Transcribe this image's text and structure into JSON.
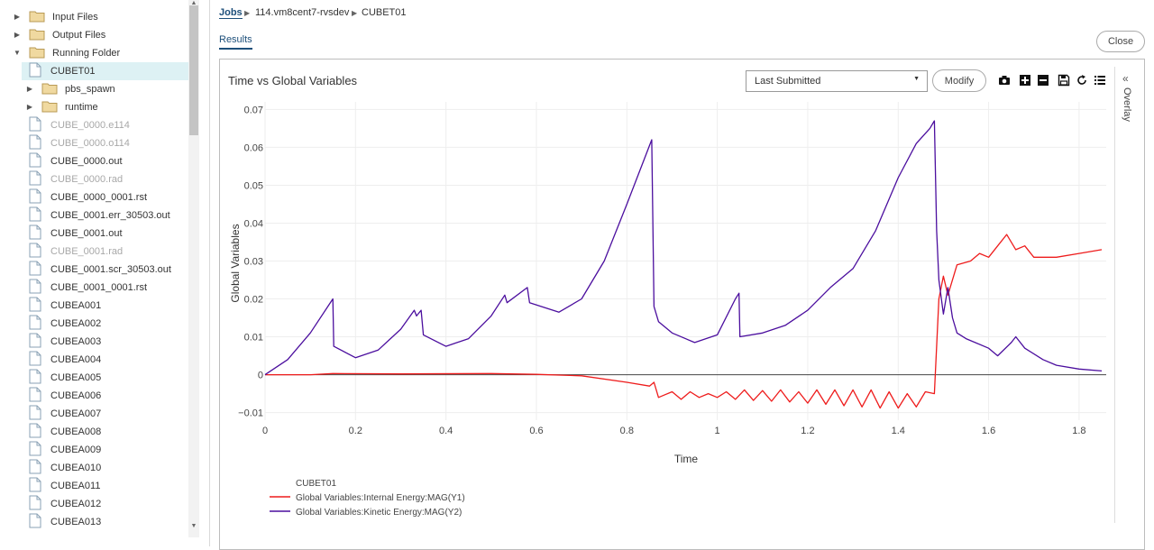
{
  "sidebar": {
    "tree": [
      {
        "label": "Input Files",
        "type": "folder",
        "toggle": "collapsed",
        "indent": 0
      },
      {
        "label": "Output Files",
        "type": "folder",
        "toggle": "collapsed",
        "indent": 0
      },
      {
        "label": "Running Folder",
        "type": "folder",
        "toggle": "expanded",
        "indent": 0
      },
      {
        "label": "CUBET01",
        "type": "file",
        "indent": 1,
        "selected": true
      },
      {
        "label": "pbs_spawn",
        "type": "folder",
        "toggle": "collapsed",
        "indent": 1
      },
      {
        "label": "runtime",
        "type": "folder",
        "toggle": "collapsed",
        "indent": 1
      },
      {
        "label": "CUBE_0000.e114",
        "type": "file",
        "indent": 1,
        "dim": true
      },
      {
        "label": "CUBE_0000.o114",
        "type": "file",
        "indent": 1,
        "dim": true
      },
      {
        "label": "CUBE_0000.out",
        "type": "file",
        "indent": 1
      },
      {
        "label": "CUBE_0000.rad",
        "type": "file",
        "indent": 1,
        "dim": true
      },
      {
        "label": "CUBE_0000_0001.rst",
        "type": "file",
        "indent": 1
      },
      {
        "label": "CUBE_0001.err_30503.out",
        "type": "file",
        "indent": 1
      },
      {
        "label": "CUBE_0001.out",
        "type": "file",
        "indent": 1
      },
      {
        "label": "CUBE_0001.rad",
        "type": "file",
        "indent": 1,
        "dim": true
      },
      {
        "label": "CUBE_0001.scr_30503.out",
        "type": "file",
        "indent": 1
      },
      {
        "label": "CUBE_0001_0001.rst",
        "type": "file",
        "indent": 1
      },
      {
        "label": "CUBEA001",
        "type": "file",
        "indent": 1
      },
      {
        "label": "CUBEA002",
        "type": "file",
        "indent": 1
      },
      {
        "label": "CUBEA003",
        "type": "file",
        "indent": 1
      },
      {
        "label": "CUBEA004",
        "type": "file",
        "indent": 1
      },
      {
        "label": "CUBEA005",
        "type": "file",
        "indent": 1
      },
      {
        "label": "CUBEA006",
        "type": "file",
        "indent": 1
      },
      {
        "label": "CUBEA007",
        "type": "file",
        "indent": 1
      },
      {
        "label": "CUBEA008",
        "type": "file",
        "indent": 1
      },
      {
        "label": "CUBEA009",
        "type": "file",
        "indent": 1
      },
      {
        "label": "CUBEA010",
        "type": "file",
        "indent": 1
      },
      {
        "label": "CUBEA011",
        "type": "file",
        "indent": 1
      },
      {
        "label": "CUBEA012",
        "type": "file",
        "indent": 1
      },
      {
        "label": "CUBEA013",
        "type": "file",
        "indent": 1
      }
    ]
  },
  "breadcrumb": {
    "jobs": "Jobs",
    "server": "114.vm8cent7-rvsdev",
    "job": "CUBET01"
  },
  "tabs": {
    "results": "Results"
  },
  "close_label": "Close",
  "toolbar": {
    "dropdown_value": "Last Submitted",
    "modify_label": "Modify",
    "icons": [
      "camera-icon",
      "zoom-in-icon",
      "zoom-out-icon",
      "save-icon",
      "reset-icon",
      "list-icon"
    ]
  },
  "overlay_label": "Overlay",
  "colors": {
    "internal": "#ee1c1c",
    "kinetic": "#4b0e9e",
    "accent": "#1d4f7a"
  },
  "chart_data": {
    "type": "line",
    "title": "Time vs Global Variables",
    "xlabel": "Time",
    "ylabel": "Global Variables",
    "xlim": [
      0,
      1.86
    ],
    "ylim": [
      -0.012,
      0.072
    ],
    "xticks": [
      "0",
      "0.2",
      "0.4",
      "0.6",
      "0.8",
      "1",
      "1.2",
      "1.4",
      "1.6",
      "1.8"
    ],
    "yticks": [
      "−0.01",
      "0",
      "0.01",
      "0.02",
      "0.03",
      "0.04",
      "0.05",
      "0.06",
      "0.07"
    ],
    "grid": true,
    "legend_title": "CUBET01",
    "series": [
      {
        "name": "Global Variables:Internal Energy:MAG(Y1)",
        "x": [
          0,
          0.1,
          0.15,
          0.3,
          0.5,
          0.6,
          0.7,
          0.8,
          0.85,
          0.86,
          0.87,
          0.88,
          0.9,
          0.92,
          0.94,
          0.96,
          0.98,
          1.0,
          1.02,
          1.04,
          1.06,
          1.08,
          1.1,
          1.12,
          1.14,
          1.16,
          1.18,
          1.2,
          1.22,
          1.24,
          1.26,
          1.28,
          1.3,
          1.32,
          1.34,
          1.36,
          1.38,
          1.4,
          1.42,
          1.44,
          1.46,
          1.48,
          1.49,
          1.5,
          1.51,
          1.53,
          1.56,
          1.58,
          1.6,
          1.62,
          1.64,
          1.66,
          1.68,
          1.7,
          1.75,
          1.8,
          1.85
        ],
        "y": [
          0,
          0,
          0.0003,
          0.0002,
          0.0003,
          0.0001,
          -0.0003,
          -0.002,
          -0.003,
          -0.002,
          -0.006,
          -0.0055,
          -0.0045,
          -0.0065,
          -0.0045,
          -0.006,
          -0.005,
          -0.006,
          -0.0045,
          -0.0065,
          -0.004,
          -0.0068,
          -0.0042,
          -0.007,
          -0.004,
          -0.0072,
          -0.0045,
          -0.0075,
          -0.004,
          -0.0078,
          -0.004,
          -0.0082,
          -0.004,
          -0.0085,
          -0.004,
          -0.0088,
          -0.0045,
          -0.0088,
          -0.005,
          -0.0085,
          -0.0045,
          -0.005,
          0.02,
          0.026,
          0.021,
          0.029,
          0.03,
          0.032,
          0.031,
          0.034,
          0.037,
          0.033,
          0.034,
          0.031,
          0.031,
          0.032,
          0.033
        ]
      },
      {
        "name": "Global Variables:Kinetic Energy:MAG(Y2)",
        "x": [
          0,
          0.05,
          0.1,
          0.15,
          0.152,
          0.2,
          0.25,
          0.3,
          0.33,
          0.335,
          0.345,
          0.35,
          0.4,
          0.45,
          0.5,
          0.53,
          0.535,
          0.58,
          0.585,
          0.65,
          0.7,
          0.75,
          0.8,
          0.855,
          0.86,
          0.87,
          0.9,
          0.95,
          1.0,
          1.04,
          1.048,
          1.05,
          1.1,
          1.15,
          1.2,
          1.25,
          1.3,
          1.35,
          1.4,
          1.44,
          1.47,
          1.48,
          1.485,
          1.49,
          1.5,
          1.51,
          1.52,
          1.53,
          1.55,
          1.6,
          1.62,
          1.65,
          1.66,
          1.68,
          1.72,
          1.75,
          1.8,
          1.85
        ],
        "y": [
          0,
          0.004,
          0.011,
          0.02,
          0.0075,
          0.0045,
          0.0065,
          0.012,
          0.017,
          0.0155,
          0.017,
          0.0105,
          0.0075,
          0.0095,
          0.0155,
          0.021,
          0.019,
          0.023,
          0.019,
          0.0165,
          0.02,
          0.03,
          0.045,
          0.062,
          0.018,
          0.014,
          0.011,
          0.0085,
          0.0105,
          0.02,
          0.0215,
          0.01,
          0.011,
          0.013,
          0.017,
          0.023,
          0.028,
          0.038,
          0.052,
          0.061,
          0.065,
          0.067,
          0.038,
          0.025,
          0.016,
          0.023,
          0.015,
          0.011,
          0.0095,
          0.007,
          0.005,
          0.0085,
          0.01,
          0.007,
          0.004,
          0.0025,
          0.0015,
          0.001
        ]
      }
    ]
  }
}
